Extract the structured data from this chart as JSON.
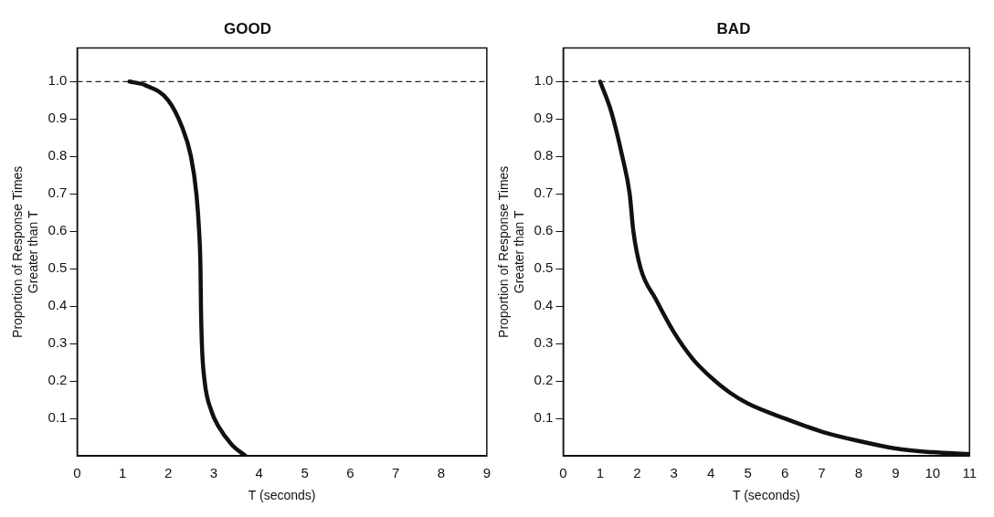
{
  "chart_data": [
    {
      "type": "line",
      "title": "GOOD",
      "xlabel": "T (seconds)",
      "ylabel": "Proportion of Response Times\nGreater than T",
      "series": [
        {
          "color": "#111111",
          "x": [
            1.15,
            1.5,
            2.0,
            2.3,
            2.5,
            2.62,
            2.68,
            2.71,
            2.72,
            2.74,
            2.8,
            2.95,
            3.1,
            3.4,
            3.7
          ],
          "values": [
            1.0,
            0.99,
            0.95,
            0.88,
            0.8,
            0.7,
            0.6,
            0.5,
            0.4,
            0.3,
            0.2,
            0.12,
            0.08,
            0.03,
            0.0
          ]
        }
      ],
      "xlim": [
        0,
        9
      ],
      "xticks": [
        0,
        1,
        2,
        3,
        4,
        5,
        6,
        7,
        8,
        9
      ],
      "ylim": [
        0,
        1.09
      ],
      "yticks": [
        0.1,
        0.2,
        0.3,
        0.4,
        0.5,
        0.6,
        0.7,
        0.8,
        0.9,
        {
          "value": 1,
          "label": "1.0"
        }
      ],
      "ref_lines": [
        {
          "axis": "y",
          "value": 1.0,
          "line_style": "dashed",
          "color": "#222222"
        }
      ],
      "grid": false,
      "legend": false,
      "marker": "none",
      "line_style": "solid"
    },
    {
      "type": "line",
      "title": "BAD",
      "xlabel": "T (seconds)",
      "ylabel": "Proportion of Response Times\nGreater than T",
      "series": [
        {
          "color": "#111111",
          "x": [
            1.0,
            1.3,
            1.6,
            1.8,
            1.9,
            2.1,
            2.5,
            3.0,
            3.5,
            4.0,
            4.5,
            5.0,
            6.0,
            7.0,
            8.0,
            9.0,
            10.0,
            11.0
          ],
          "values": [
            1.0,
            0.92,
            0.8,
            0.7,
            0.6,
            0.5,
            0.42,
            0.33,
            0.26,
            0.21,
            0.17,
            0.14,
            0.1,
            0.065,
            0.04,
            0.02,
            0.01,
            0.005
          ]
        }
      ],
      "xlim": [
        0,
        11
      ],
      "xticks": [
        0,
        1,
        2,
        3,
        4,
        5,
        6,
        7,
        8,
        9,
        10,
        11
      ],
      "ylim": [
        0,
        1.09
      ],
      "yticks": [
        0.1,
        0.2,
        0.3,
        0.4,
        0.5,
        0.6,
        0.7,
        0.8,
        0.9,
        {
          "value": 1,
          "label": "1.0"
        }
      ],
      "ref_lines": [
        {
          "axis": "y",
          "value": 1.0,
          "line_style": "dashed",
          "color": "#222222"
        }
      ],
      "grid": false,
      "legend": false,
      "marker": "none",
      "line_style": "solid"
    }
  ]
}
